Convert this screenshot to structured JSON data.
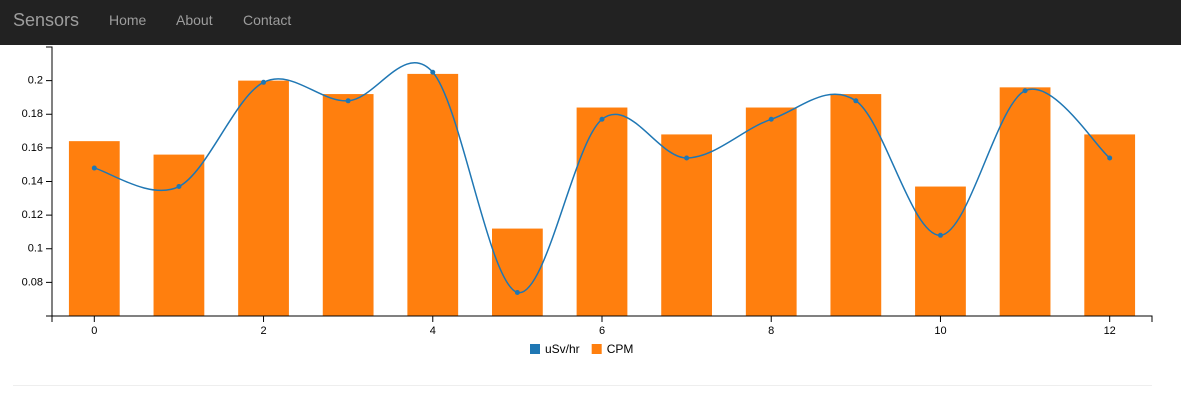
{
  "navbar": {
    "brand": "Sensors",
    "links": [
      "Home",
      "About",
      "Contact"
    ]
  },
  "chart_data": {
    "type": "bar",
    "x": [
      0,
      1,
      2,
      3,
      4,
      5,
      6,
      7,
      8,
      9,
      10,
      11,
      12
    ],
    "series": [
      {
        "name": "uSv/hr",
        "color": "#1f77b4",
        "type": "line",
        "values": [
          0.148,
          0.137,
          0.199,
          0.188,
          0.205,
          0.074,
          0.177,
          0.154,
          0.177,
          0.188,
          0.108,
          0.194,
          0.154
        ]
      },
      {
        "name": "CPM",
        "color": "#ff7f0e",
        "type": "bar",
        "values": [
          0.164,
          0.156,
          0.2,
          0.192,
          0.204,
          0.112,
          0.184,
          0.168,
          0.184,
          0.192,
          0.137,
          0.196,
          0.168
        ]
      }
    ],
    "xlim": [
      -0.5,
      12.5
    ],
    "xticks": [
      0,
      2,
      4,
      6,
      8,
      10,
      12
    ],
    "ylim": [
      0.06,
      0.22
    ],
    "yticks": [
      0.08,
      0.1,
      0.12,
      0.14,
      0.16,
      0.18,
      0.2
    ],
    "legend": "bottom"
  }
}
